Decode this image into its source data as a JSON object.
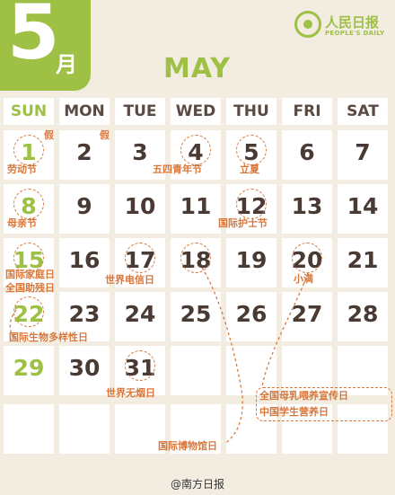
{
  "header": {
    "month_number": "5",
    "month_cn": "月",
    "month_en": "MAY",
    "logo_cn": "人民日报",
    "logo_en": "PEOPLE'S DAILY"
  },
  "weekdays": [
    "SUN",
    "MON",
    "TUE",
    "WED",
    "THU",
    "FRI",
    "SAT"
  ],
  "days": [
    "1",
    "2",
    "3",
    "4",
    "5",
    "6",
    "7",
    "8",
    "9",
    "10",
    "11",
    "12",
    "13",
    "14",
    "15",
    "16",
    "17",
    "18",
    "19",
    "20",
    "21",
    "22",
    "23",
    "24",
    "25",
    "26",
    "27",
    "28",
    "29",
    "30",
    "31"
  ],
  "holiday_mark": "假",
  "notes": {
    "d1": "劳动节",
    "d4": "五四青年节",
    "d5": "立夏",
    "d8": "母亲节",
    "d12": "国际护士节",
    "d15a": "国际家庭日",
    "d15b": "全国助残日",
    "d17": "世界电信日",
    "d20": "小满",
    "d22": "国际生物多样性日",
    "d31": "世界无烟日",
    "d18": "国际博物馆日",
    "d20b": "全国母乳喂养宣传日",
    "d20c": "中国学生营养日"
  },
  "footer": "@南方日报",
  "colors": {
    "accent": "#9dc045",
    "note": "#d9773b",
    "text": "#4a3a34",
    "bg": "#f2ece1"
  }
}
